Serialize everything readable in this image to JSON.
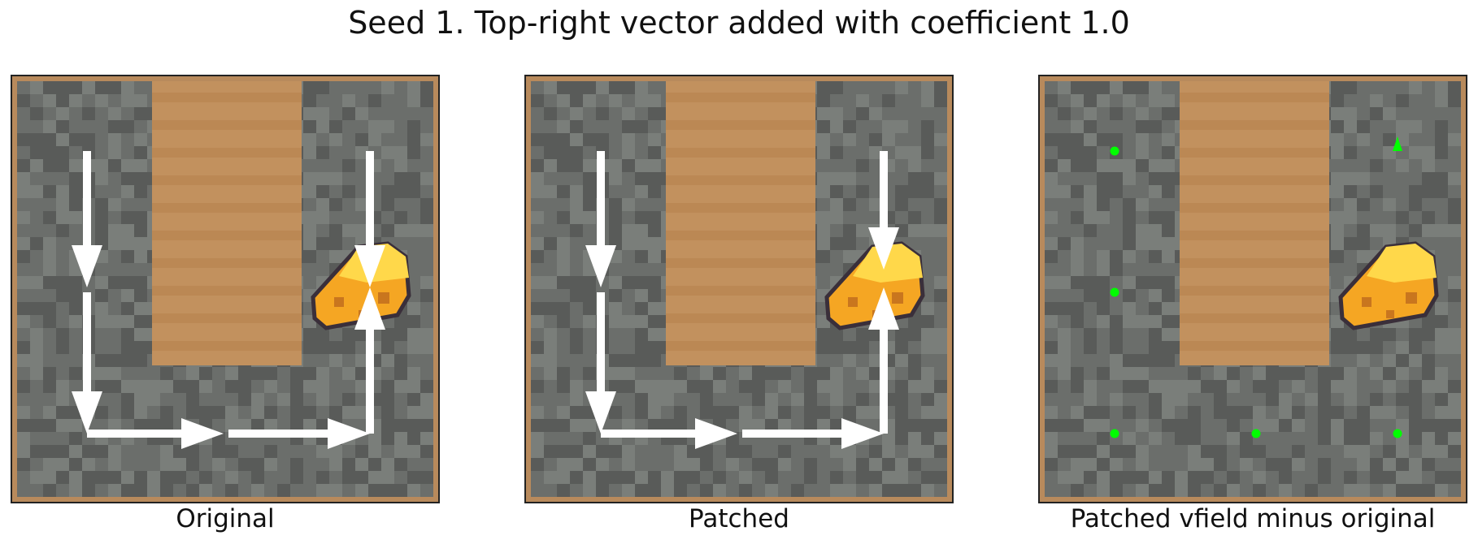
{
  "figure": {
    "title": "Seed 1. Top-right vector added with coefficient 1.0"
  },
  "panels": [
    {
      "id": "original",
      "caption": "Original"
    },
    {
      "id": "patched",
      "caption": "Patched"
    },
    {
      "id": "diff",
      "caption": "Patched vfield minus original"
    }
  ],
  "colors": {
    "stone": "#6b6e6b",
    "stone_dark": "#4a4d4b",
    "stone_light": "#8a8d8a",
    "dirt": "#c2915e",
    "dirt_dark": "#b5824f",
    "border": "#b88a5c",
    "cheese": "#f5a623",
    "cheese_light": "#ffd84a",
    "cheese_hole": "#c9761e",
    "cheese_outline": "#3a2f3a",
    "arrow": "#ffffff",
    "diff_marker": "#00ff00"
  },
  "icons": {
    "goal": "cheese-icon",
    "arrow": "vector-arrow",
    "zero_marker": "zero-change-dot",
    "change_marker": "change-arrow"
  }
}
